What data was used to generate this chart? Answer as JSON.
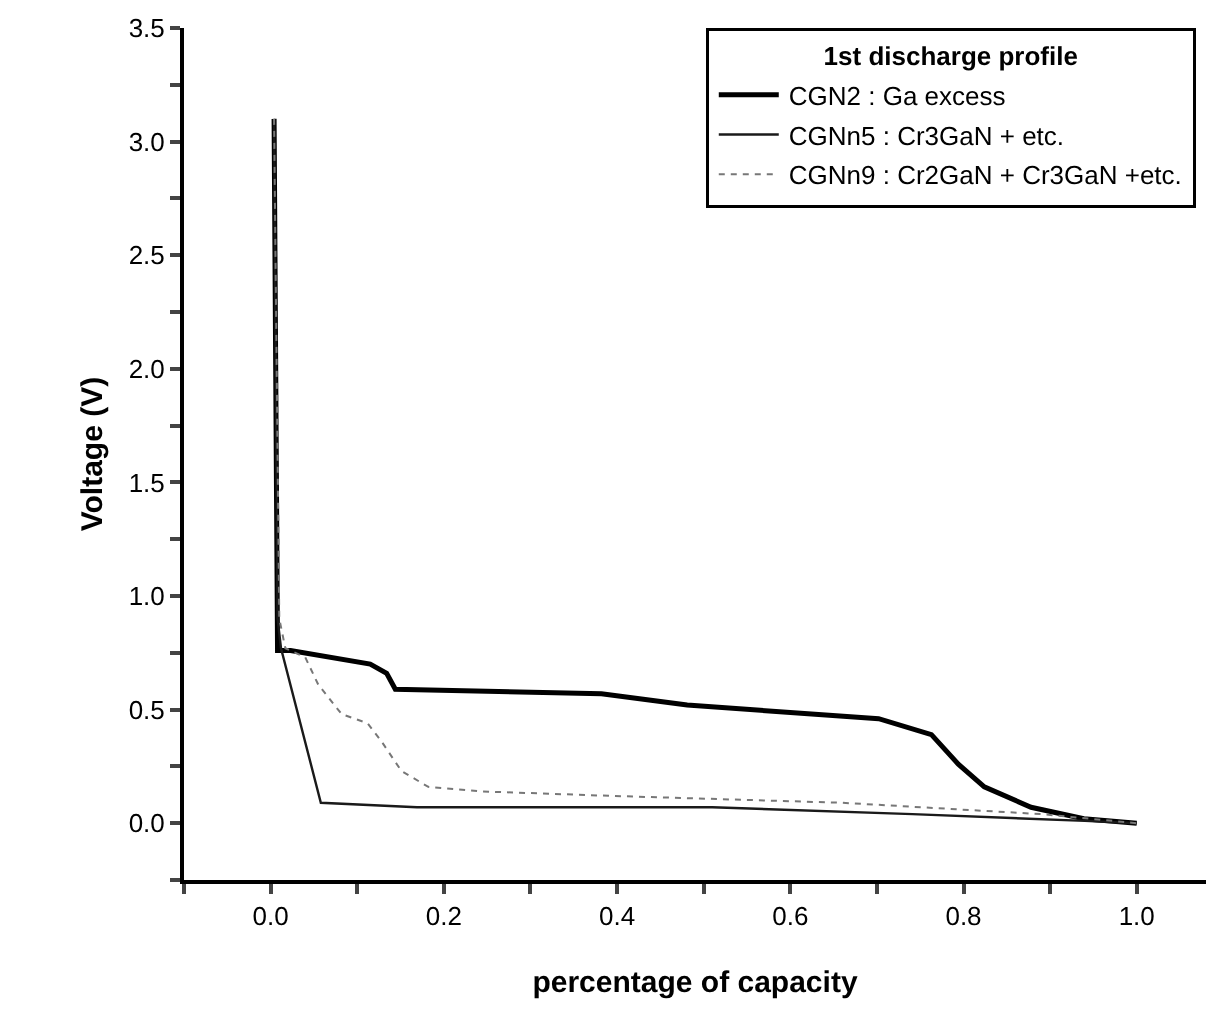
{
  "chart_data": {
    "type": "line",
    "xlabel": "percentage of capacity",
    "ylabel": "Voltage (V)",
    "legend_title": "1st discharge profile",
    "legend": "top right",
    "grid": false,
    "xlim": [
      -0.1,
      1.08
    ],
    "ylim": [
      -0.25,
      3.5
    ],
    "xticks": [
      {
        "value": -0.1,
        "label": null
      },
      {
        "value": 0,
        "label": "0.0"
      },
      {
        "value": 0.1,
        "label": null
      },
      {
        "value": 0.2,
        "label": "0.2"
      },
      {
        "value": 0.3,
        "label": null
      },
      {
        "value": 0.4,
        "label": "0.4"
      },
      {
        "value": 0.5,
        "label": null
      },
      {
        "value": 0.6,
        "label": "0.6"
      },
      {
        "value": 0.7,
        "label": null
      },
      {
        "value": 0.8,
        "label": "0.8"
      },
      {
        "value": 0.9,
        "label": null
      },
      {
        "value": 1,
        "label": "1.0"
      }
    ],
    "yticks": [
      {
        "value": -0.25,
        "label": null
      },
      {
        "value": 0,
        "label": "0.0"
      },
      {
        "value": 0.25,
        "label": null
      },
      {
        "value": 0.5,
        "label": "0.5"
      },
      {
        "value": 0.75,
        "label": null
      },
      {
        "value": 1,
        "label": "1.0"
      },
      {
        "value": 1.25,
        "label": null
      },
      {
        "value": 1.5,
        "label": "1.5"
      },
      {
        "value": 1.75,
        "label": null
      },
      {
        "value": 2,
        "label": "2.0"
      },
      {
        "value": 2.25,
        "label": null
      },
      {
        "value": 2.5,
        "label": "2.5"
      },
      {
        "value": 2.75,
        "label": null
      },
      {
        "value": 3,
        "label": "3.0"
      },
      {
        "value": 3.25,
        "label": null
      },
      {
        "value": 3.5,
        "label": "3.5"
      }
    ],
    "marker": "none",
    "series": [
      {
        "name": "CGN2 : Ga excess",
        "color": "#000000",
        "line_style": "solid",
        "x": [
          0.004,
          0.008,
          0.023,
          0.115,
          0.134,
          0.144,
          0.382,
          0.481,
          0.702,
          0.763,
          0.794,
          0.824,
          0.878,
          0.939,
          1.0
        ],
        "values": [
          3.1,
          0.76,
          0.76,
          0.7,
          0.66,
          0.59,
          0.57,
          0.52,
          0.46,
          0.39,
          0.26,
          0.16,
          0.07,
          0.02,
          0.0
        ]
      },
      {
        "name": "CGNn5 : Cr3GaN + etc.",
        "color": "#1a1a1a",
        "line_style": "solid",
        "x": [
          0.004,
          0.008,
          0.012,
          0.058,
          0.169,
          0.51,
          0.741,
          0.94,
          1.0
        ],
        "values": [
          3.1,
          0.9,
          0.77,
          0.09,
          0.07,
          0.07,
          0.04,
          0.01,
          0.0
        ]
      },
      {
        "name": "CGNn9 : Cr2GaN + Cr3GaN +etc.",
        "color": "#777777",
        "line_style": "dotted",
        "x": [
          0.004,
          0.01,
          0.017,
          0.04,
          0.055,
          0.082,
          0.112,
          0.128,
          0.151,
          0.182,
          0.243,
          0.395,
          0.66,
          0.89,
          1.0
        ],
        "values": [
          3.1,
          0.9,
          0.77,
          0.73,
          0.61,
          0.48,
          0.44,
          0.36,
          0.23,
          0.16,
          0.14,
          0.12,
          0.09,
          0.04,
          0.0
        ]
      }
    ]
  }
}
